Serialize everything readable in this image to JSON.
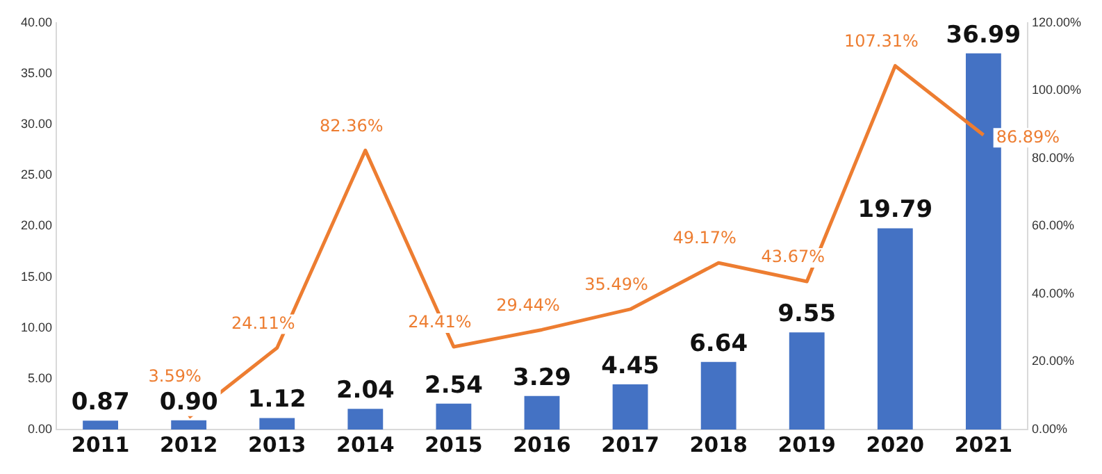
{
  "chart_data": {
    "type": "bar",
    "categories": [
      "2011",
      "2012",
      "2013",
      "2014",
      "2015",
      "2016",
      "2017",
      "2018",
      "2019",
      "2020",
      "2021"
    ],
    "series": [
      {
        "color": "#4472c4",
        "values": [
          0.87,
          0.9,
          1.12,
          2.04,
          2.54,
          3.29,
          4.45,
          6.64,
          9.55,
          19.79,
          36.99
        ],
        "value_labels": [
          "0.87",
          "0.90",
          "1.12",
          "2.04",
          "2.54",
          "3.29",
          "4.45",
          "6.64",
          "9.55",
          "19.79",
          "36.99"
        ]
      },
      {
        "type": "line",
        "axis": "y2",
        "color": "#ed7d31",
        "values": [
          null,
          3.59,
          24.11,
          82.36,
          24.41,
          29.44,
          35.49,
          49.17,
          43.67,
          107.31,
          86.89
        ],
        "value_labels": [
          null,
          "3.59%",
          "24.11%",
          "82.36%",
          "24.41%",
          "29.44%",
          "35.49%",
          "49.17%",
          "43.67%",
          "107.31%",
          "86.89%"
        ]
      }
    ],
    "ylim": [
      0,
      40
    ],
    "yticks": [
      {
        "value": 0,
        "label": "0.00"
      },
      {
        "value": 5,
        "label": "5.00"
      },
      {
        "value": 10,
        "label": "10.00"
      },
      {
        "value": 15,
        "label": "15.00"
      },
      {
        "value": 20,
        "label": "20.00"
      },
      {
        "value": 25,
        "label": "25.00"
      },
      {
        "value": 30,
        "label": "30.00"
      },
      {
        "value": 35,
        "label": "35.00"
      },
      {
        "value": 40,
        "label": "40.00"
      }
    ],
    "y2lim": [
      0,
      120
    ],
    "y2ticks": [
      {
        "value": 0,
        "label": "0.00%"
      },
      {
        "value": 20,
        "label": "20.00%"
      },
      {
        "value": 40,
        "label": "40.00%"
      },
      {
        "value": 60,
        "label": "60.00%"
      },
      {
        "value": 80,
        "label": "80.00%"
      },
      {
        "value": 100,
        "label": "100.00%"
      },
      {
        "value": 120,
        "label": "120.00%"
      }
    ],
    "marker": "none",
    "grid": false,
    "legend": false
  }
}
